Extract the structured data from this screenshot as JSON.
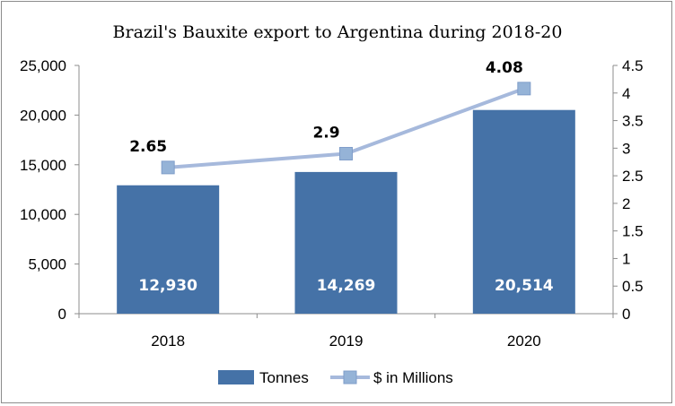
{
  "chart_data": {
    "type": "bar",
    "title": "Brazil's Bauxite export to Argentina during 2018-20",
    "categories": [
      "2018",
      "2019",
      "2020"
    ],
    "series": [
      {
        "name": "Tonnes",
        "type": "bar",
        "axis": "left",
        "values": [
          12930,
          14269,
          20514
        ],
        "labels": [
          "12,930",
          "14,269",
          "20,514"
        ],
        "color": "#4572a7"
      },
      {
        "name": "$ in Millions",
        "type": "line",
        "axis": "right",
        "values": [
          2.65,
          2.9,
          4.08
        ],
        "labels": [
          "2.65",
          "2.9",
          "4.08"
        ],
        "color": "#a6b9dc",
        "marker_color": "#95b3d7"
      }
    ],
    "y_left": {
      "min": 0,
      "max": 25000,
      "step": 5000,
      "ticks": [
        "0",
        "5,000",
        "10,000",
        "15,000",
        "20,000",
        "25,000"
      ]
    },
    "y_right": {
      "min": 0,
      "max": 4.5,
      "step": 0.5,
      "ticks": [
        "0",
        "0.5",
        "1",
        "1.5",
        "2",
        "2.5",
        "3",
        "3.5",
        "4",
        "4.5"
      ]
    },
    "legend_position": "bottom",
    "grid": false
  }
}
